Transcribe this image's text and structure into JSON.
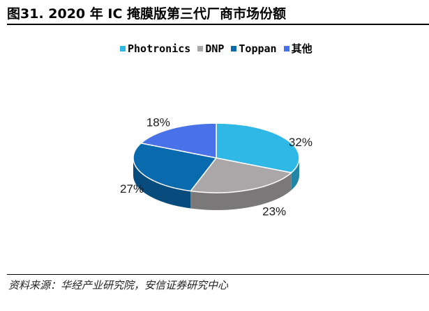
{
  "figure": {
    "title": "图31. 2020 年 IC 掩膜版第三代厂商市场份额",
    "source": "资料来源：华经产业研究院，安信证券研究中心"
  },
  "chart_data": {
    "type": "pie",
    "style": "3d",
    "categories": [
      "Photronics",
      "DNP",
      "Toppan",
      "其他"
    ],
    "values": [
      32,
      23,
      27,
      18
    ],
    "value_labels": [
      "32%",
      "23%",
      "27%",
      "18%"
    ],
    "colors": [
      "#2fb8e6",
      "#aba7a8",
      "#0a6aae",
      "#4a72e8"
    ],
    "legend_placement": "top"
  }
}
